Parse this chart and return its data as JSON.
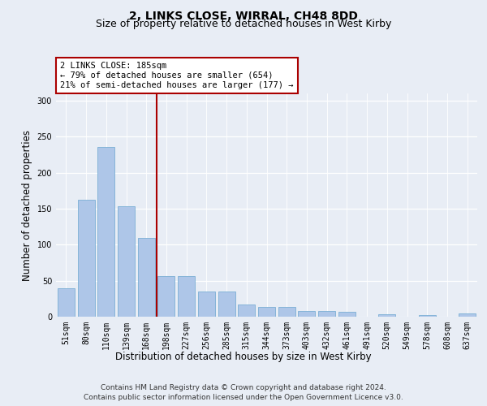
{
  "title": "2, LINKS CLOSE, WIRRAL, CH48 8DD",
  "subtitle": "Size of property relative to detached houses in West Kirby",
  "xlabel": "Distribution of detached houses by size in West Kirby",
  "ylabel": "Number of detached properties",
  "categories": [
    "51sqm",
    "80sqm",
    "110sqm",
    "139sqm",
    "168sqm",
    "198sqm",
    "227sqm",
    "256sqm",
    "285sqm",
    "315sqm",
    "344sqm",
    "373sqm",
    "403sqm",
    "432sqm",
    "461sqm",
    "491sqm",
    "520sqm",
    "549sqm",
    "578sqm",
    "608sqm",
    "637sqm"
  ],
  "values": [
    39,
    162,
    236,
    153,
    109,
    56,
    56,
    35,
    35,
    17,
    14,
    13,
    8,
    8,
    7,
    0,
    3,
    0,
    2,
    0,
    4
  ],
  "bar_color": "#aec6e8",
  "bar_edge_color": "#7aafd4",
  "vline_x": 4.5,
  "vline_color": "#aa0000",
  "annotation_text": "2 LINKS CLOSE: 185sqm\n← 79% of detached houses are smaller (654)\n21% of semi-detached houses are larger (177) →",
  "annotation_box_color": "#ffffff",
  "annotation_box_edge": "#aa0000",
  "ylim": [
    0,
    310
  ],
  "yticks": [
    0,
    50,
    100,
    150,
    200,
    250,
    300
  ],
  "footer_line1": "Contains HM Land Registry data © Crown copyright and database right 2024.",
  "footer_line2": "Contains public sector information licensed under the Open Government Licence v3.0.",
  "bg_color": "#e8edf5",
  "plot_bg_color": "#e8edf5",
  "title_fontsize": 10,
  "subtitle_fontsize": 9,
  "axis_fontsize": 8.5,
  "tick_fontsize": 7,
  "footer_fontsize": 6.5,
  "ann_fontsize": 7.5
}
